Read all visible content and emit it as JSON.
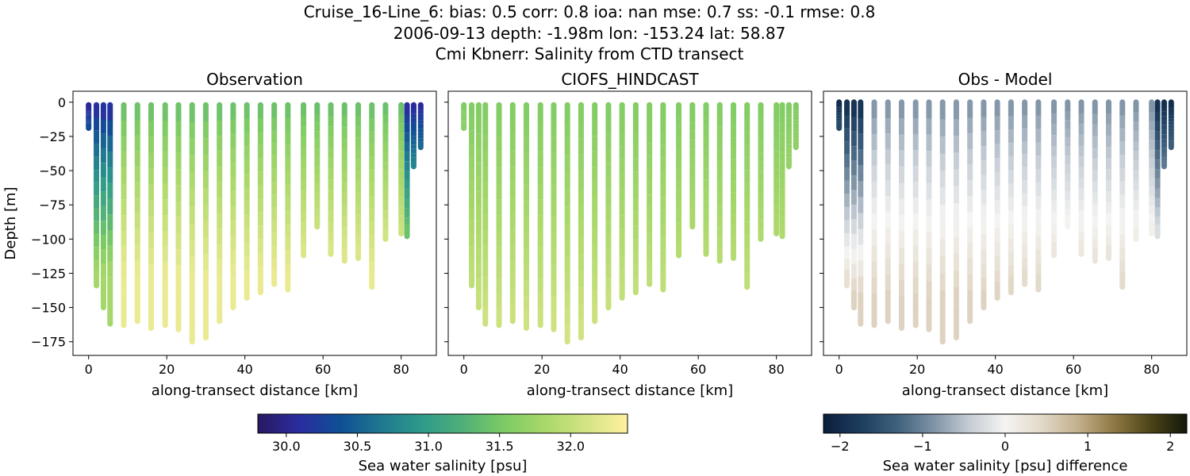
{
  "title": {
    "line1": "Cruise_16-Line_6: bias: 0.5  corr: 0.8  ioa: nan  mse: 0.7  ss: -0.1  rmse: 0.8",
    "line2": "2006-09-13 depth: -1.98m lon: -153.24 lat: 58.87",
    "line3": "Cmi Kbnerr: Salinity from CTD transect"
  },
  "colors": {
    "obs_scale": [
      "#2a1860",
      "#2a2da0",
      "#0f4f94",
      "#1f7890",
      "#2f9a8a",
      "#50b078",
      "#7dcb64",
      "#a9d86a",
      "#d4e484",
      "#fff0a0"
    ],
    "diff_scale": [
      "#0b1d3a",
      "#1c3d5e",
      "#3e5f7c",
      "#7c91a4",
      "#c4ccd4",
      "#f4f4f2",
      "#e2d9c9",
      "#c3b08c",
      "#8e7843",
      "#4c4418",
      "#14180a"
    ]
  },
  "chart_data": [
    {
      "type": "scatter",
      "title": "Observation",
      "xlabel": "along-transect distance [km]",
      "ylabel": "Depth [m]",
      "xlim": [
        -4,
        89
      ],
      "ylim": [
        -185,
        8
      ],
      "xticks": [
        "0",
        "20",
        "40",
        "60",
        "80"
      ],
      "yticks": [
        "0",
        "−25",
        "−50",
        "−75",
        "−100",
        "−125",
        "−150",
        "−175"
      ],
      "color_variable": "salinity",
      "profiles": [
        {
          "x": 0.0,
          "bottom": -19
        },
        {
          "x": 2.0,
          "bottom": -134
        },
        {
          "x": 3.8,
          "bottom": -150
        },
        {
          "x": 5.5,
          "bottom": -162
        },
        {
          "x": 9.0,
          "bottom": -163
        },
        {
          "x": 12.5,
          "bottom": -160
        },
        {
          "x": 16.0,
          "bottom": -165
        },
        {
          "x": 19.6,
          "bottom": -163
        },
        {
          "x": 23.0,
          "bottom": -166
        },
        {
          "x": 26.5,
          "bottom": -175
        },
        {
          "x": 30.0,
          "bottom": -172
        },
        {
          "x": 33.5,
          "bottom": -160
        },
        {
          "x": 37.0,
          "bottom": -150
        },
        {
          "x": 40.5,
          "bottom": -143
        },
        {
          "x": 44.0,
          "bottom": -139
        },
        {
          "x": 47.5,
          "bottom": -133
        },
        {
          "x": 51.0,
          "bottom": -137
        },
        {
          "x": 55.0,
          "bottom": -112
        },
        {
          "x": 58.5,
          "bottom": -91
        },
        {
          "x": 62.0,
          "bottom": -111
        },
        {
          "x": 65.5,
          "bottom": -116
        },
        {
          "x": 69.0,
          "bottom": -114
        },
        {
          "x": 72.5,
          "bottom": -135
        },
        {
          "x": 76.0,
          "bottom": -100
        },
        {
          "x": 80.0,
          "bottom": -96
        },
        {
          "x": 81.5,
          "bottom": -98
        },
        {
          "x": 83.2,
          "bottom": -47
        },
        {
          "x": 85.0,
          "bottom": -33
        }
      ]
    },
    {
      "type": "scatter",
      "title": "CIOFS_HINDCAST",
      "xlabel": "along-transect distance [km]",
      "ylabel": "",
      "xlim": [
        -4,
        89
      ],
      "ylim": [
        -185,
        8
      ],
      "xticks": [
        "0",
        "20",
        "40",
        "60",
        "80"
      ],
      "yticks": [],
      "color_variable": "salinity"
    },
    {
      "type": "scatter",
      "title": "Obs - Model",
      "xlabel": "along-transect distance [km]",
      "ylabel": "",
      "xlim": [
        -4,
        89
      ],
      "ylim": [
        -185,
        8
      ],
      "xticks": [
        "0",
        "20",
        "40",
        "60",
        "80"
      ],
      "yticks": [],
      "color_variable": "salinity difference"
    }
  ],
  "colorbars": [
    {
      "label": "Sea water salinity [psu]",
      "range": [
        29.8,
        32.4
      ],
      "ticks": [
        "30.0",
        "30.5",
        "31.0",
        "31.5",
        "32.0"
      ],
      "tick_values": [
        30.0,
        30.5,
        31.0,
        31.5,
        32.0
      ]
    },
    {
      "label": "Sea water salinity [psu] difference",
      "range": [
        -2.2,
        2.2
      ],
      "ticks": [
        "−2",
        "−1",
        "0",
        "1",
        "2"
      ],
      "tick_values": [
        -2,
        -1,
        0,
        1,
        2
      ]
    }
  ]
}
